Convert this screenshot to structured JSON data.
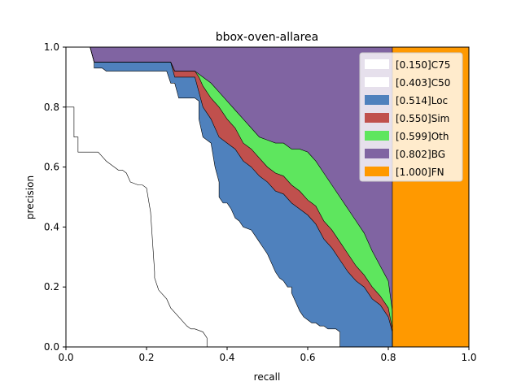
{
  "chart_data": {
    "type": "area",
    "title": "bbox-oven-allarea",
    "xlabel": "recall",
    "ylabel": "precision",
    "xlim": [
      0.0,
      1.0
    ],
    "ylim": [
      0.0,
      1.0
    ],
    "xticks": [
      "0.0",
      "0.2",
      "0.4",
      "0.6",
      "0.8",
      "1.0"
    ],
    "yticks": [
      "0.0",
      "0.2",
      "0.4",
      "0.6",
      "0.8",
      "1.0"
    ],
    "grid": false,
    "legend_position": "top-right",
    "legend": [
      {
        "label": "[0.150]C75",
        "color": "#ffffff"
      },
      {
        "label": "[0.403]C50",
        "color": "#ffffff"
      },
      {
        "label": "[0.514]Loc",
        "color": "#4f81bd"
      },
      {
        "label": "[0.550]Sim",
        "color": "#c0504d"
      },
      {
        "label": "[0.599]Oth",
        "color": "#5ee65e"
      },
      {
        "label": "[0.802]BG",
        "color": "#8064a2"
      },
      {
        "label": "[1.000]FN",
        "color": "#ff9900"
      }
    ],
    "series": [
      {
        "name": "[0.150]C75",
        "color": "#ffffff",
        "fill_to": 0,
        "x": [
          0.0,
          0.02,
          0.02,
          0.03,
          0.03,
          0.08,
          0.1,
          0.12,
          0.13,
          0.14,
          0.15,
          0.16,
          0.18,
          0.19,
          0.2,
          0.21,
          0.22,
          0.22,
          0.23,
          0.25,
          0.26,
          0.28,
          0.3,
          0.31,
          0.32,
          0.34,
          0.35,
          0.35,
          1.0
        ],
        "y": [
          0.8,
          0.8,
          0.7,
          0.7,
          0.65,
          0.65,
          0.62,
          0.6,
          0.59,
          0.59,
          0.58,
          0.55,
          0.54,
          0.54,
          0.53,
          0.45,
          0.25,
          0.23,
          0.19,
          0.16,
          0.13,
          0.1,
          0.07,
          0.06,
          0.06,
          0.05,
          0.03,
          0.0,
          0.0
        ]
      },
      {
        "name": "[0.403]C50",
        "color": "#ffffff",
        "fill_to": 0,
        "x": [
          0.0,
          0.06,
          0.07,
          0.07,
          0.09,
          0.1,
          0.12,
          0.2,
          0.25,
          0.26,
          0.27,
          0.28,
          0.32,
          0.33,
          0.33,
          0.34,
          0.36,
          0.37,
          0.38,
          0.38,
          0.39,
          0.4,
          0.41,
          0.42,
          0.43,
          0.44,
          0.46,
          0.47,
          0.48,
          0.49,
          0.5,
          0.51,
          0.52,
          0.53,
          0.54,
          0.55,
          0.56,
          0.56,
          0.57,
          0.58,
          0.59,
          0.6,
          0.61,
          0.62,
          0.63,
          0.64,
          0.65,
          0.66,
          0.67,
          0.68,
          0.68,
          1.0
        ],
        "y": [
          1.0,
          1.0,
          0.95,
          0.93,
          0.93,
          0.92,
          0.92,
          0.92,
          0.92,
          0.88,
          0.88,
          0.83,
          0.83,
          0.82,
          0.76,
          0.7,
          0.68,
          0.6,
          0.55,
          0.5,
          0.48,
          0.48,
          0.46,
          0.43,
          0.42,
          0.4,
          0.39,
          0.37,
          0.35,
          0.33,
          0.31,
          0.28,
          0.25,
          0.23,
          0.22,
          0.2,
          0.2,
          0.18,
          0.15,
          0.12,
          0.1,
          0.09,
          0.08,
          0.08,
          0.07,
          0.07,
          0.06,
          0.06,
          0.06,
          0.05,
          0.0,
          0.0
        ]
      },
      {
        "name": "[0.514]Loc",
        "color": "#4f81bd",
        "fill_to": 1,
        "x": [
          0.0,
          0.06,
          0.07,
          0.13,
          0.26,
          0.27,
          0.32,
          0.33,
          0.34,
          0.36,
          0.38,
          0.4,
          0.42,
          0.44,
          0.46,
          0.48,
          0.5,
          0.52,
          0.54,
          0.56,
          0.58,
          0.6,
          0.62,
          0.64,
          0.66,
          0.68,
          0.7,
          0.72,
          0.74,
          0.76,
          0.78,
          0.8,
          0.81,
          0.81,
          1.0
        ],
        "y": [
          1.0,
          1.0,
          0.95,
          0.95,
          0.95,
          0.9,
          0.9,
          0.85,
          0.8,
          0.76,
          0.7,
          0.68,
          0.66,
          0.62,
          0.6,
          0.57,
          0.55,
          0.52,
          0.51,
          0.48,
          0.46,
          0.44,
          0.41,
          0.36,
          0.33,
          0.29,
          0.25,
          0.22,
          0.2,
          0.16,
          0.14,
          0.1,
          0.05,
          0.0,
          0.0
        ]
      },
      {
        "name": "[0.550]Sim",
        "color": "#c0504d",
        "fill_to": 2,
        "x": [
          0.0,
          0.06,
          0.07,
          0.13,
          0.26,
          0.27,
          0.32,
          0.33,
          0.34,
          0.36,
          0.38,
          0.4,
          0.42,
          0.44,
          0.46,
          0.48,
          0.5,
          0.52,
          0.54,
          0.56,
          0.58,
          0.6,
          0.62,
          0.64,
          0.66,
          0.68,
          0.7,
          0.72,
          0.74,
          0.76,
          0.78,
          0.8,
          0.81,
          0.81,
          1.0
        ],
        "y": [
          1.0,
          1.0,
          0.95,
          0.95,
          0.95,
          0.92,
          0.92,
          0.9,
          0.87,
          0.83,
          0.8,
          0.76,
          0.73,
          0.68,
          0.66,
          0.63,
          0.6,
          0.58,
          0.57,
          0.54,
          0.52,
          0.49,
          0.47,
          0.42,
          0.39,
          0.35,
          0.31,
          0.27,
          0.24,
          0.2,
          0.17,
          0.13,
          0.06,
          0.0,
          0.0
        ]
      },
      {
        "name": "[0.599]Oth",
        "color": "#5ee65e",
        "fill_to": 3,
        "x": [
          0.0,
          0.06,
          0.07,
          0.13,
          0.26,
          0.27,
          0.32,
          0.33,
          0.34,
          0.36,
          0.38,
          0.4,
          0.42,
          0.44,
          0.46,
          0.48,
          0.5,
          0.52,
          0.54,
          0.56,
          0.58,
          0.6,
          0.62,
          0.64,
          0.66,
          0.68,
          0.7,
          0.72,
          0.74,
          0.76,
          0.78,
          0.8,
          0.81,
          0.81,
          1.0
        ],
        "y": [
          1.0,
          1.0,
          0.95,
          0.95,
          0.95,
          0.92,
          0.92,
          0.91,
          0.9,
          0.88,
          0.85,
          0.82,
          0.79,
          0.76,
          0.73,
          0.7,
          0.69,
          0.68,
          0.68,
          0.66,
          0.66,
          0.65,
          0.62,
          0.58,
          0.54,
          0.5,
          0.46,
          0.42,
          0.38,
          0.32,
          0.27,
          0.22,
          0.12,
          0.0,
          0.0
        ]
      },
      {
        "name": "[0.802]BG",
        "color": "#8064a2",
        "fill_to": 4,
        "x": [
          0.0,
          0.06,
          0.81,
          0.81,
          1.0
        ],
        "y": [
          1.0,
          1.0,
          1.0,
          0.0,
          0.0
        ]
      },
      {
        "name": "[1.000]FN",
        "color": "#ff9900",
        "fill_to": 5,
        "x": [
          0.0,
          1.0
        ],
        "y": [
          1.0,
          1.0
        ]
      }
    ]
  }
}
